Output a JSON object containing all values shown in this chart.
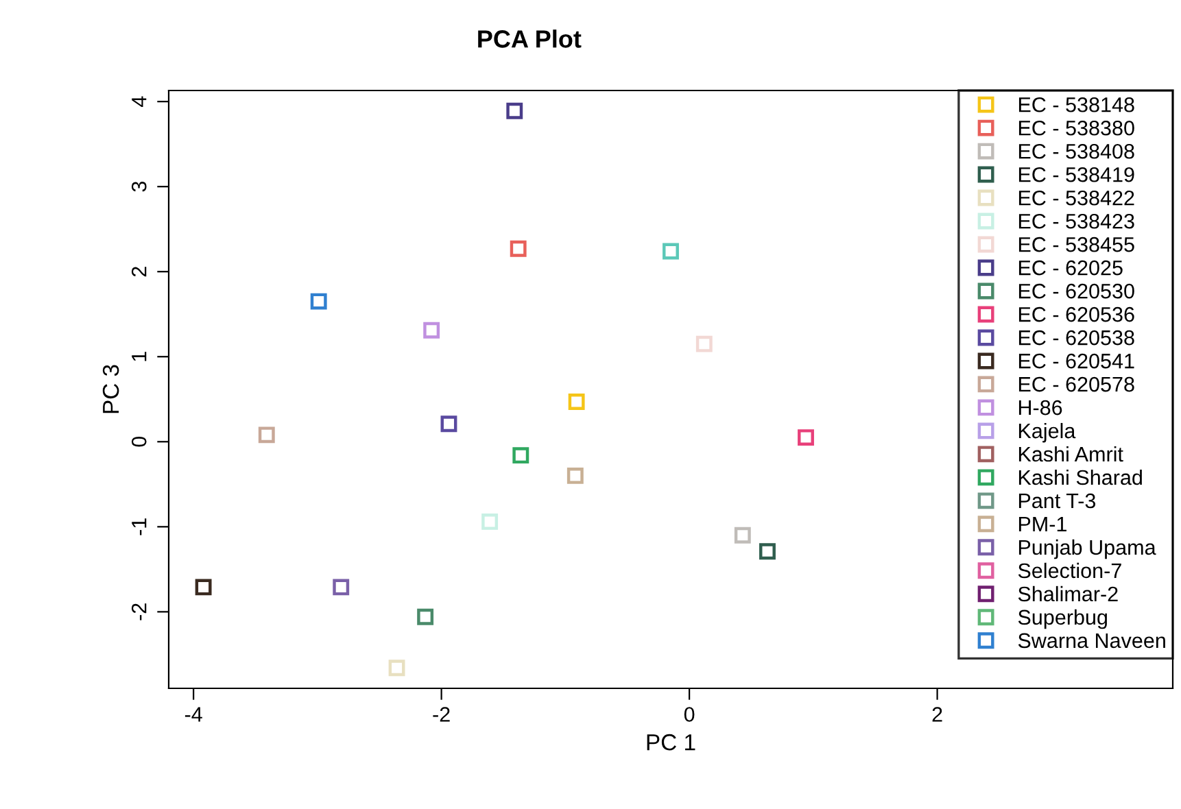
{
  "chart_data": {
    "type": "scatter",
    "title": "PCA Plot",
    "xlabel": "PC 1",
    "ylabel": "PC 3",
    "xlim": [
      -4.2,
      3.9
    ],
    "ylim": [
      -2.9,
      4.13
    ],
    "xticks": [
      -4,
      -2,
      0,
      2
    ],
    "yticks": [
      -2,
      -1,
      0,
      1,
      2,
      3,
      4
    ],
    "marker": "square",
    "legend": "right",
    "grid": false,
    "series": [
      {
        "name": "EC - 538148",
        "color": "#f5c518",
        "x": [
          -0.91
        ],
        "values": [
          0.47
        ]
      },
      {
        "name": "EC - 538380",
        "color": "#e8605a",
        "x": [
          -1.38
        ],
        "values": [
          2.27
        ]
      },
      {
        "name": "EC - 538408",
        "color": "#c0bcb8",
        "x": [
          0.43
        ],
        "values": [
          -1.1
        ]
      },
      {
        "name": "EC - 538419",
        "color": "#2f5e4e",
        "x": [
          0.63
        ],
        "values": [
          -1.29
        ]
      },
      {
        "name": "EC - 538422",
        "color": "#e8e0c0",
        "x": [
          -2.36
        ],
        "values": [
          -2.66
        ]
      },
      {
        "name": "EC - 538423",
        "color": "#c8f0e4",
        "x": [
          -1.61
        ],
        "values": [
          -0.94
        ]
      },
      {
        "name": "EC - 538455",
        "color": "#f2d8d4",
        "x": [
          0.12
        ],
        "values": [
          1.15
        ]
      },
      {
        "name": "EC - 62025",
        "color": "#4a3d8a",
        "x": [
          -1.41
        ],
        "values": [
          3.89
        ]
      },
      {
        "name": "EC - 620530",
        "color": "#4a8a6a",
        "x": [
          -2.13
        ],
        "values": [
          -2.06
        ]
      },
      {
        "name": "EC - 620536",
        "color": "#e8407a",
        "x": [
          0.94
        ],
        "values": [
          0.05
        ]
      },
      {
        "name": "EC - 620538",
        "color": "#5a4aa0",
        "x": [
          -1.94
        ],
        "values": [
          0.21
        ]
      },
      {
        "name": "EC - 620541",
        "color": "#3a2a20",
        "x": [
          -3.92
        ],
        "values": [
          -1.71
        ]
      },
      {
        "name": "EC - 620578",
        "color": "#c8a898",
        "x": [
          -3.41
        ],
        "values": [
          0.08
        ]
      },
      {
        "name": "H-86",
        "color": "#c090e0",
        "x": [
          -2.08
        ],
        "values": [
          1.31
        ]
      },
      {
        "name": "Kajela",
        "color": "#b8a0e8",
        "x": [
          null
        ],
        "values": [
          null
        ]
      },
      {
        "name": "Kashi Amrit",
        "color": "#a06060",
        "x": [
          null
        ],
        "values": [
          null
        ]
      },
      {
        "name": "Kashi Sharad",
        "color": "#30a860",
        "x": [
          -1.36
        ],
        "values": [
          -0.16
        ]
      },
      {
        "name": "Pant T-3",
        "color": "#709888",
        "x": [
          null
        ],
        "values": [
          null
        ]
      },
      {
        "name": "PM-1",
        "color": "#c8b094",
        "x": [
          -0.92
        ],
        "values": [
          -0.4
        ]
      },
      {
        "name": "Punjab Upama",
        "color": "#7a60a8",
        "x": [
          -2.81
        ],
        "values": [
          -1.71
        ]
      },
      {
        "name": "Selection-7",
        "color": "#e060a0",
        "x": [
          null
        ],
        "values": [
          null
        ]
      },
      {
        "name": "Shalimar-2",
        "color": "#702070",
        "x": [
          null
        ],
        "values": [
          null
        ]
      },
      {
        "name": "Superbug",
        "color": "#60b878",
        "x": [
          null
        ],
        "values": [
          null
        ]
      },
      {
        "name": "Swarna Naveen",
        "color": "#3080d0",
        "x": [
          -2.99
        ],
        "values": [
          1.65
        ]
      },
      {
        "color": "#5cc8b8",
        "x": [
          -0.15
        ],
        "values": [
          2.24
        ]
      }
    ]
  }
}
